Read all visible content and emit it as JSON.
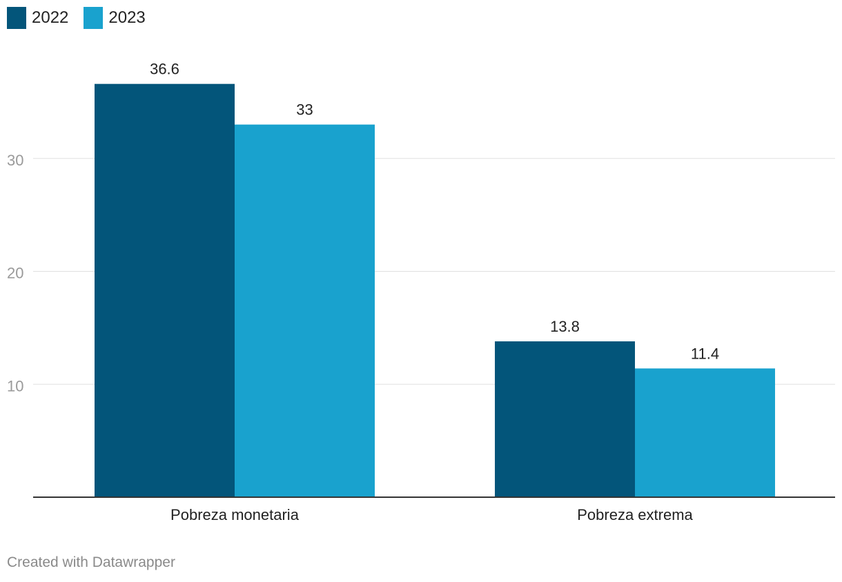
{
  "chart_data": {
    "type": "bar",
    "categories": [
      "Pobreza monetaria",
      "Pobreza extrema"
    ],
    "series": [
      {
        "name": "2022",
        "values": [
          36.6,
          13.8
        ],
        "color": "#03557a"
      },
      {
        "name": "2023",
        "values": [
          33,
          11.4
        ],
        "color": "#19a2ce"
      }
    ],
    "value_labels": [
      [
        "36.6",
        "13.8"
      ],
      [
        "33",
        "11.4"
      ]
    ],
    "y_ticks": [
      10,
      20,
      30
    ],
    "y_tick_labels": [
      "10",
      "20",
      "30"
    ],
    "ylim": [
      0,
      40
    ],
    "baseline_value": 0,
    "title": "",
    "xlabel": "",
    "ylabel": "",
    "grid": true,
    "legend_position": "top-left"
  },
  "legend": {
    "items": [
      {
        "label": "2022",
        "color": "#03557a"
      },
      {
        "label": "2023",
        "color": "#19a2ce"
      }
    ]
  },
  "footer": {
    "credit": "Created with Datawrapper"
  },
  "colors": {
    "gridline": "#e0e0e0",
    "axis": "#333333",
    "tick_text": "#9a9a9a",
    "label_text": "#222222"
  }
}
